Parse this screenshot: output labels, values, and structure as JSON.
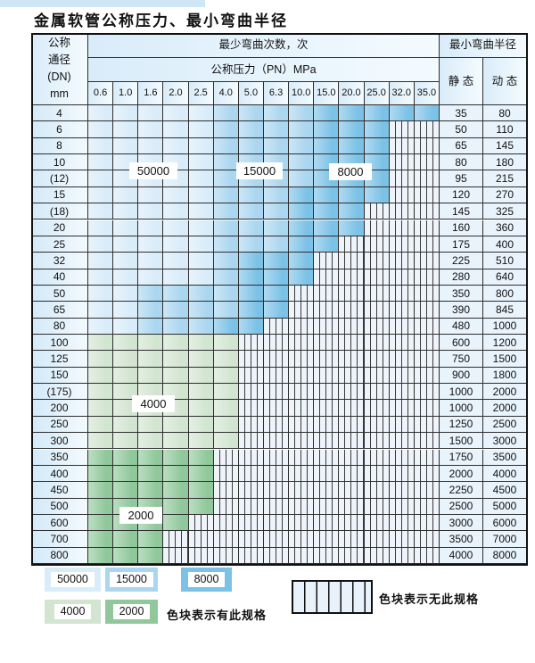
{
  "title": "金属软管公称压力、最小弯曲半径",
  "colors": {
    "accent_strip": "#cfe6f5",
    "zone_A_50000": "#d9ecf9",
    "zone_B_15000": "#aad6f0",
    "zone_C_8000": "#7cc2e7",
    "zone_D_4000": "#d2e5d0",
    "zone_E_2000": "#90c89b",
    "hatch_bg": "#eef4fa",
    "grid_line": "#2e2e2e"
  },
  "table": {
    "header": {
      "dn_lines": [
        "公称",
        "通径",
        "(DN)",
        "mm"
      ],
      "bend_cycles": "最少弯曲次数，次",
      "pressure": "公称压力（PN）MPa",
      "bend_radius": "最小弯曲半径",
      "static_label": "静 态",
      "dynamic_label": "动 态"
    },
    "pn_values": [
      "0.6",
      "1.0",
      "1.6",
      "2.0",
      "2.5",
      "4.0",
      "5.0",
      "6.3",
      "10.0",
      "15.0",
      "20.0",
      "25.0",
      "32.0",
      "35.0"
    ],
    "zone_codes": {
      "A": "50000",
      "B": "15000",
      "C": "8000",
      "D": "4000",
      "E": "2000",
      "H": "no-spec-hatch"
    },
    "rows": [
      {
        "dn": "4",
        "cells": "AAAAABBBBCCCCC",
        "static": "35",
        "dynamic": "80"
      },
      {
        "dn": "6",
        "cells": "AAAAABBBBCCCHH",
        "static": "50",
        "dynamic": "110"
      },
      {
        "dn": "8",
        "cells": "AAAAABBBBCCCHH",
        "static": "65",
        "dynamic": "145"
      },
      {
        "dn": "10",
        "cells": "AAAAABBBBCCCHH",
        "static": "80",
        "dynamic": "180"
      },
      {
        "dn": "(12)",
        "cells": "AAAAABBBBCCCHH",
        "static": "95",
        "dynamic": "215"
      },
      {
        "dn": "15",
        "cells": "AAAAABBBCCCCHH",
        "static": "120",
        "dynamic": "270"
      },
      {
        "dn": "(18)",
        "cells": "AAAAABBBCCCHHH",
        "static": "145",
        "dynamic": "325"
      },
      {
        "dn": "20",
        "cells": "AAAAABBBCCCHHH",
        "static": "160",
        "dynamic": "360"
      },
      {
        "dn": "25",
        "cells": "AAAAABBBCCHHHH",
        "static": "175",
        "dynamic": "400"
      },
      {
        "dn": "32",
        "cells": "AAAAABCCCHHHHH",
        "static": "225",
        "dynamic": "510"
      },
      {
        "dn": "40",
        "cells": "AAAAABCCCHHHHH",
        "static": "280",
        "dynamic": "640"
      },
      {
        "dn": "50",
        "cells": "AABBBBCCHHHHHH",
        "static": "350",
        "dynamic": "800"
      },
      {
        "dn": "65",
        "cells": "AABBBBCCHHHHHH",
        "static": "390",
        "dynamic": "845"
      },
      {
        "dn": "80",
        "cells": "AABBBCCHHHHHHH",
        "static": "480",
        "dynamic": "1000"
      },
      {
        "dn": "100",
        "cells": "DDDDDDHHHHHHHH",
        "static": "600",
        "dynamic": "1200"
      },
      {
        "dn": "125",
        "cells": "DDDDDDHHHHHHHH",
        "static": "750",
        "dynamic": "1500"
      },
      {
        "dn": "150",
        "cells": "DDDDDDHHHHHHHH",
        "static": "900",
        "dynamic": "1800"
      },
      {
        "dn": "(175)",
        "cells": "DDDDDDHHHHHHHH",
        "static": "1000",
        "dynamic": "2000"
      },
      {
        "dn": "200",
        "cells": "DDDDDDHHHHHHHH",
        "static": "1000",
        "dynamic": "2000"
      },
      {
        "dn": "250",
        "cells": "DDDDDDHHHHHHHH",
        "static": "1250",
        "dynamic": "2500"
      },
      {
        "dn": "300",
        "cells": "DDDDDDHHHHHHHH",
        "static": "1500",
        "dynamic": "3000"
      },
      {
        "dn": "350",
        "cells": "EEEEEHHHHHHHHH",
        "static": "1750",
        "dynamic": "3500"
      },
      {
        "dn": "400",
        "cells": "EEEEEHHHHHHHHH",
        "static": "2000",
        "dynamic": "4000"
      },
      {
        "dn": "450",
        "cells": "EEEEEHHHHHHHHH",
        "static": "2250",
        "dynamic": "4500"
      },
      {
        "dn": "500",
        "cells": "EEEEEHHHHHHHHH",
        "static": "2500",
        "dynamic": "5000"
      },
      {
        "dn": "600",
        "cells": "EEEEHHHHHHHHHH",
        "static": "3000",
        "dynamic": "6000"
      },
      {
        "dn": "700",
        "cells": "EEEHHHHHHHHHHH",
        "static": "3500",
        "dynamic": "7000"
      },
      {
        "dn": "800",
        "cells": "EEEHHHHHHHHHHH",
        "static": "4000",
        "dynamic": "8000"
      }
    ],
    "overlay_labels": [
      {
        "text": "50000"
      },
      {
        "text": "15000"
      },
      {
        "text": "8000"
      },
      {
        "text": "4000"
      },
      {
        "text": "2000"
      }
    ]
  },
  "legend": {
    "row1": [
      {
        "label": "50000",
        "zone": "A"
      },
      {
        "label": "15000",
        "zone": "B"
      },
      {
        "label": "8000",
        "zone": "C"
      }
    ],
    "row2": [
      {
        "label": "4000",
        "zone": "D"
      },
      {
        "label": "2000",
        "zone": "E"
      }
    ],
    "has_spec_text": "色块表示有此规格",
    "no_spec_text": "色块表示无此规格"
  }
}
